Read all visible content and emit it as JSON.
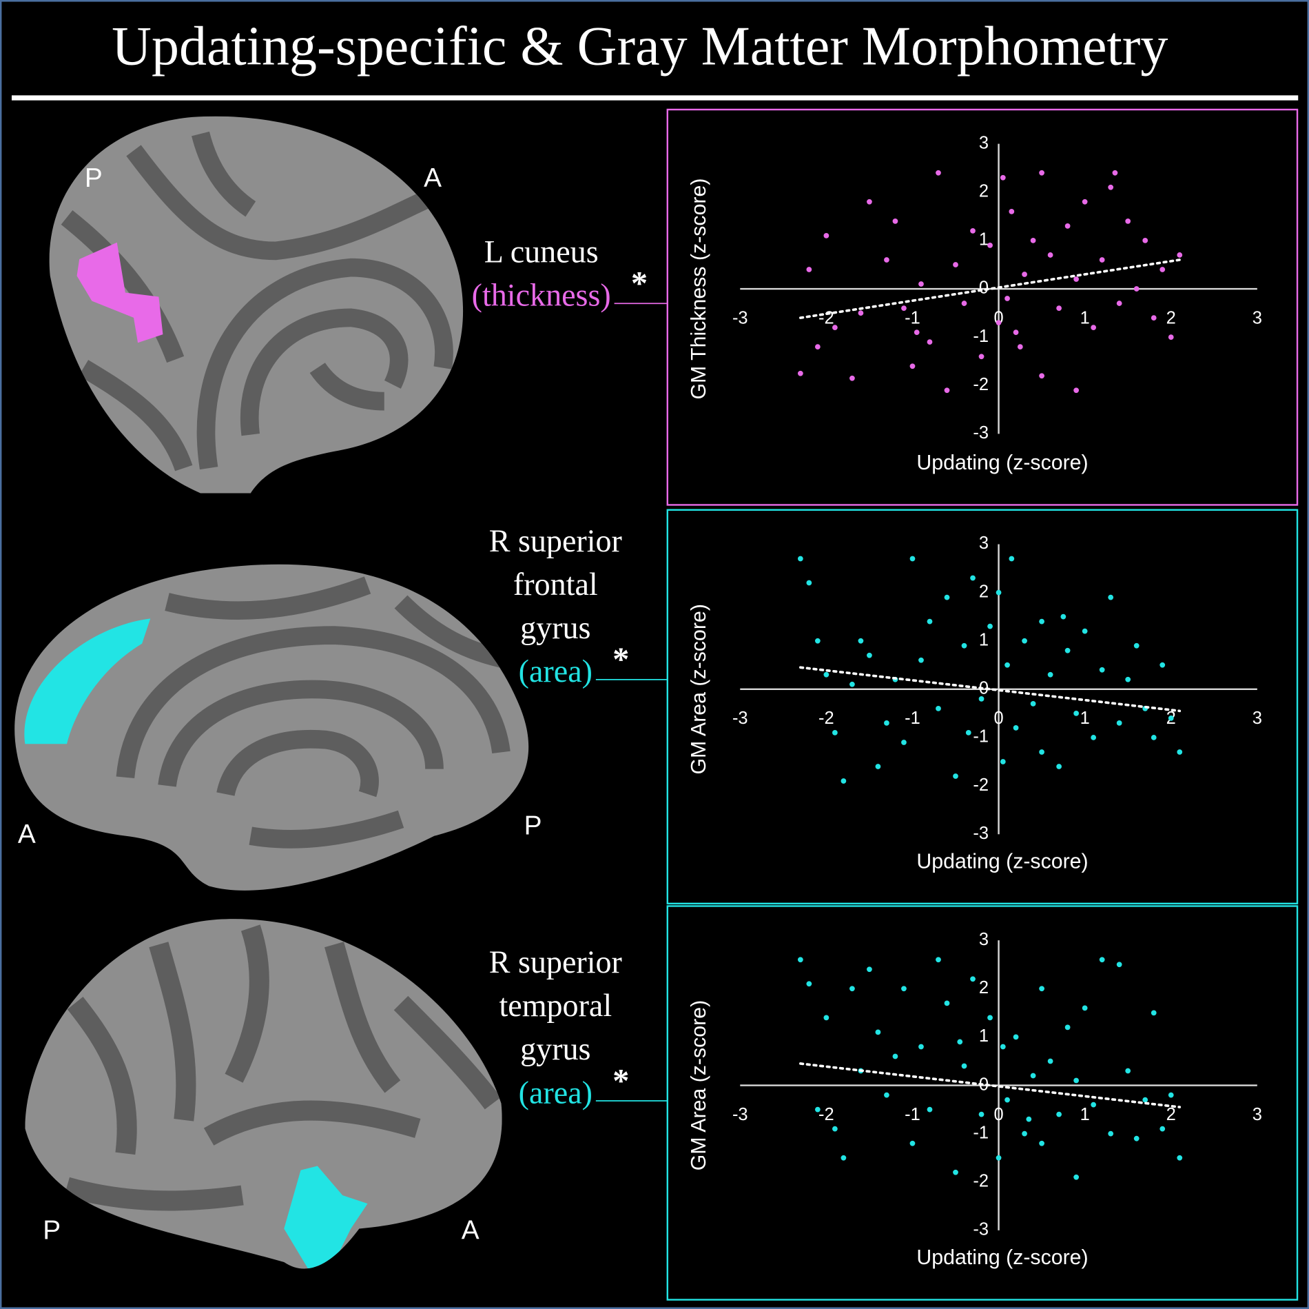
{
  "title": "Updating-specific & Gray Matter Morphometry",
  "panels": [
    {
      "region_lines": [
        "L cuneus"
      ],
      "measure": "(thickness)",
      "mark": "*",
      "orientation": [
        "P",
        "A"
      ]
    },
    {
      "region_lines": [
        "R superior",
        "frontal",
        "gyrus"
      ],
      "measure": "(area)",
      "mark": "*",
      "orientation": [
        "A",
        "P"
      ]
    },
    {
      "region_lines": [
        "R superior",
        "temporal",
        "gyrus"
      ],
      "measure": "(area)",
      "mark": "*",
      "orientation": [
        "P",
        "A"
      ]
    }
  ],
  "chart_data": [
    {
      "type": "scatter",
      "xlabel": "Updating (z-score)",
      "ylabel": "GM Thickness (z-score)",
      "color": "#e86ae8",
      "xlim": [
        -3,
        3
      ],
      "ylim": [
        -3,
        3
      ],
      "xticks": [
        -3,
        -2,
        -1,
        0,
        1,
        2,
        3
      ],
      "yticks": [
        -3,
        -2,
        -1,
        0,
        1,
        2,
        3
      ],
      "x": [
        -2.2,
        -2.3,
        -2.1,
        -2.0,
        -1.9,
        -1.7,
        -1.5,
        -1.3,
        -1.2,
        -1.1,
        -1.0,
        -0.9,
        -0.8,
        -0.7,
        -0.6,
        -0.5,
        -0.4,
        -0.3,
        -0.2,
        -0.1,
        0.0,
        0.05,
        0.1,
        0.15,
        0.2,
        0.3,
        0.4,
        0.5,
        0.5,
        0.6,
        0.7,
        0.8,
        0.9,
        0.9,
        1.0,
        1.1,
        1.2,
        1.3,
        1.4,
        1.5,
        1.6,
        1.7,
        1.8,
        1.9,
        2.0,
        2.1,
        -1.6,
        -0.95,
        0.25,
        1.35
      ],
      "y": [
        0.4,
        -1.75,
        -1.2,
        1.1,
        -0.8,
        -1.85,
        1.8,
        0.6,
        1.4,
        -0.4,
        -1.6,
        0.1,
        -1.1,
        2.4,
        -2.1,
        0.5,
        -0.3,
        1.2,
        -1.4,
        0.9,
        -0.7,
        2.3,
        -0.2,
        1.6,
        -0.9,
        0.3,
        1.0,
        2.4,
        -1.8,
        0.7,
        -0.4,
        1.3,
        -2.1,
        0.2,
        1.8,
        -0.8,
        0.6,
        2.1,
        -0.3,
        1.4,
        0.0,
        1.0,
        -0.6,
        0.4,
        -1.0,
        0.7,
        -0.5,
        -0.9,
        -1.2,
        2.4
      ],
      "trendline": {
        "x": [
          -2.3,
          2.1
        ],
        "y": [
          -0.6,
          0.6
        ]
      }
    },
    {
      "type": "scatter",
      "xlabel": "Updating (z-score)",
      "ylabel": "GM Area (z-score)",
      "color": "#22e4e4",
      "xlim": [
        -3,
        3
      ],
      "ylim": [
        -3,
        3
      ],
      "xticks": [
        -3,
        -2,
        -1,
        0,
        1,
        2,
        3
      ],
      "yticks": [
        -3,
        -2,
        -1,
        0,
        1,
        2,
        3
      ],
      "x": [
        -2.3,
        -2.2,
        -2.1,
        -2.0,
        -1.9,
        -1.8,
        -1.7,
        -1.6,
        -1.5,
        -1.3,
        -1.2,
        -1.1,
        -1.0,
        -0.9,
        -0.8,
        -0.7,
        -0.6,
        -0.5,
        -0.4,
        -0.3,
        -0.2,
        -0.1,
        0.0,
        0.05,
        0.1,
        0.15,
        0.2,
        0.3,
        0.4,
        0.5,
        0.5,
        0.6,
        0.7,
        0.8,
        0.9,
        1.0,
        1.1,
        1.2,
        1.3,
        1.4,
        1.5,
        1.6,
        1.7,
        1.8,
        1.9,
        2.0,
        2.1,
        -1.4,
        -0.35,
        0.75
      ],
      "y": [
        2.7,
        2.2,
        1.0,
        0.3,
        -0.9,
        -1.9,
        0.1,
        1.0,
        0.7,
        -0.7,
        0.2,
        -1.1,
        2.7,
        0.6,
        1.4,
        -0.4,
        1.9,
        -1.8,
        0.9,
        2.3,
        -0.2,
        1.3,
        2.0,
        -1.5,
        0.5,
        2.7,
        -0.8,
        1.0,
        -0.3,
        1.4,
        -1.3,
        0.3,
        -1.6,
        0.8,
        -0.5,
        1.2,
        -1.0,
        0.4,
        1.9,
        -0.7,
        0.2,
        0.9,
        -0.4,
        -1.0,
        0.5,
        -0.6,
        -1.3,
        -1.6,
        -0.9,
        1.5
      ],
      "trendline": {
        "x": [
          -2.3,
          2.1
        ],
        "y": [
          0.45,
          -0.45
        ]
      }
    },
    {
      "type": "scatter",
      "xlabel": "Updating (z-score)",
      "ylabel": "GM Area (z-score)",
      "color": "#22e4e4",
      "xlim": [
        -3,
        3
      ],
      "ylim": [
        -3,
        3
      ],
      "xticks": [
        -3,
        -2,
        -1,
        0,
        1,
        2,
        3
      ],
      "yticks": [
        -3,
        -2,
        -1,
        0,
        1,
        2,
        3
      ],
      "x": [
        -2.3,
        -2.2,
        -2.1,
        -2.0,
        -1.9,
        -1.8,
        -1.7,
        -1.5,
        -1.4,
        -1.3,
        -1.2,
        -1.1,
        -1.0,
        -0.9,
        -0.8,
        -0.7,
        -0.6,
        -0.5,
        -0.4,
        -0.3,
        -0.2,
        -0.1,
        0.0,
        0.05,
        0.1,
        0.2,
        0.3,
        0.4,
        0.5,
        0.5,
        0.6,
        0.7,
        0.8,
        0.9,
        0.9,
        1.0,
        1.1,
        1.2,
        1.3,
        1.4,
        1.5,
        1.6,
        1.7,
        1.8,
        1.9,
        2.0,
        2.1,
        -1.6,
        -0.45,
        0.35
      ],
      "y": [
        2.6,
        2.1,
        -0.5,
        1.4,
        -0.9,
        -1.5,
        2.0,
        2.4,
        1.1,
        -0.2,
        0.6,
        2.0,
        -1.2,
        0.8,
        -0.5,
        2.6,
        1.7,
        -1.8,
        0.4,
        2.2,
        -0.6,
        1.4,
        -1.5,
        0.8,
        -0.3,
        1.0,
        -1.0,
        0.2,
        2.0,
        -1.2,
        0.5,
        -0.6,
        1.2,
        -1.9,
        0.1,
        1.6,
        -0.4,
        2.6,
        -1.0,
        2.5,
        0.3,
        -1.1,
        -0.3,
        1.5,
        -0.9,
        -0.2,
        -1.5,
        0.3,
        0.9,
        -0.7
      ],
      "trendline": {
        "x": [
          -2.3,
          2.1
        ],
        "y": [
          0.45,
          -0.45
        ]
      }
    }
  ]
}
